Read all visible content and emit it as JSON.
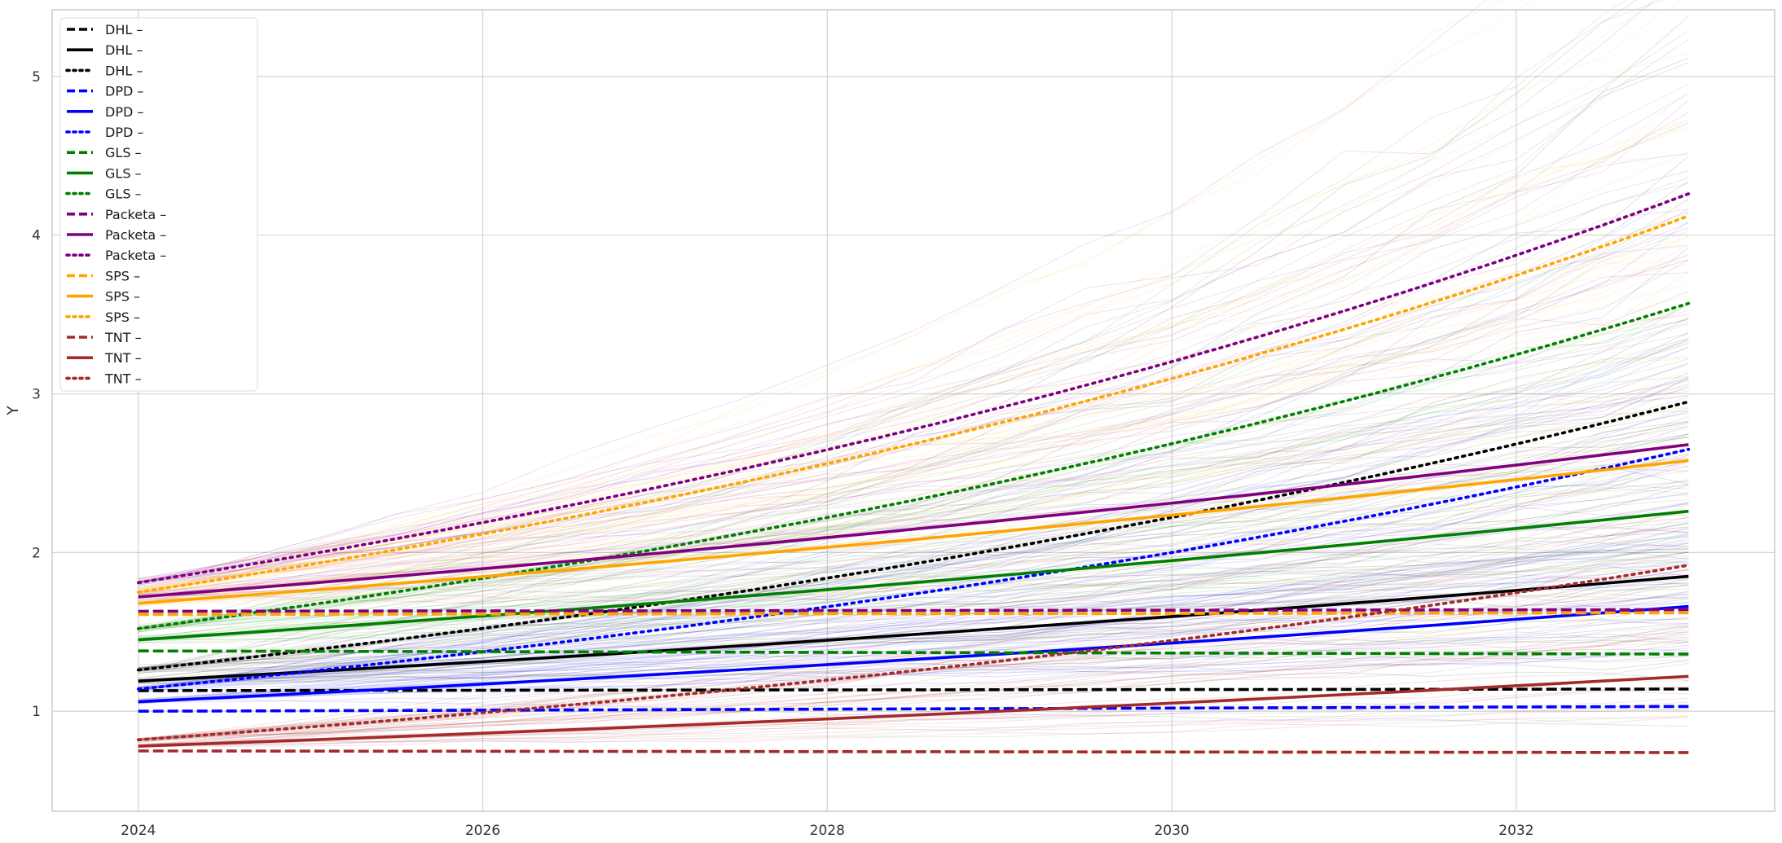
{
  "chart_data": {
    "type": "line",
    "title": "",
    "xlabel": "",
    "ylabel": "Y",
    "xlim": [
      2023.5,
      2033.5
    ],
    "ylim": [
      0.37,
      5.42
    ],
    "x_ticks": [
      2024,
      2026,
      2028,
      2030,
      2032
    ],
    "y_ticks": [
      1,
      2,
      3,
      4,
      5
    ],
    "grid": true,
    "legend_position": "top-left",
    "x_start": 2024,
    "x_end": 2033,
    "series": [
      {
        "name": "DHL –",
        "color": "#000000",
        "style": "dashed",
        "start": 1.13,
        "end": 1.14
      },
      {
        "name": "DHL –",
        "color": "#000000",
        "style": "solid",
        "start": 1.19,
        "end": 1.85
      },
      {
        "name": "DHL –",
        "color": "#000000",
        "style": "dotted",
        "start": 1.26,
        "end": 2.95
      },
      {
        "name": "DPD –",
        "color": "#0000ff",
        "style": "dashed",
        "start": 1.0,
        "end": 1.03
      },
      {
        "name": "DPD –",
        "color": "#0000ff",
        "style": "solid",
        "start": 1.06,
        "end": 1.66
      },
      {
        "name": "DPD –",
        "color": "#0000ff",
        "style": "dotted",
        "start": 1.14,
        "end": 2.65
      },
      {
        "name": "GLS –",
        "color": "#008000",
        "style": "dashed",
        "start": 1.38,
        "end": 1.36
      },
      {
        "name": "GLS –",
        "color": "#008000",
        "style": "solid",
        "start": 1.45,
        "end": 2.26
      },
      {
        "name": "GLS –",
        "color": "#008000",
        "style": "dotted",
        "start": 1.52,
        "end": 3.57
      },
      {
        "name": "Packeta –",
        "color": "#800080",
        "style": "dashed",
        "start": 1.63,
        "end": 1.64
      },
      {
        "name": "Packeta –",
        "color": "#800080",
        "style": "solid",
        "start": 1.72,
        "end": 2.68
      },
      {
        "name": "Packeta –",
        "color": "#800080",
        "style": "dotted",
        "start": 1.81,
        "end": 4.26
      },
      {
        "name": "SPS –",
        "color": "#ffa500",
        "style": "dashed",
        "start": 1.61,
        "end": 1.62
      },
      {
        "name": "SPS –",
        "color": "#ffa500",
        "style": "solid",
        "start": 1.68,
        "end": 2.58
      },
      {
        "name": "SPS –",
        "color": "#ffa500",
        "style": "dotted",
        "start": 1.75,
        "end": 4.12
      },
      {
        "name": "TNT –",
        "color": "#a52a2a",
        "style": "dashed",
        "start": 0.75,
        "end": 0.74
      },
      {
        "name": "TNT –",
        "color": "#a52a2a",
        "style": "solid",
        "start": 0.78,
        "end": 1.22
      },
      {
        "name": "TNT –",
        "color": "#a52a2a",
        "style": "dotted",
        "start": 0.82,
        "end": 1.92
      }
    ]
  }
}
